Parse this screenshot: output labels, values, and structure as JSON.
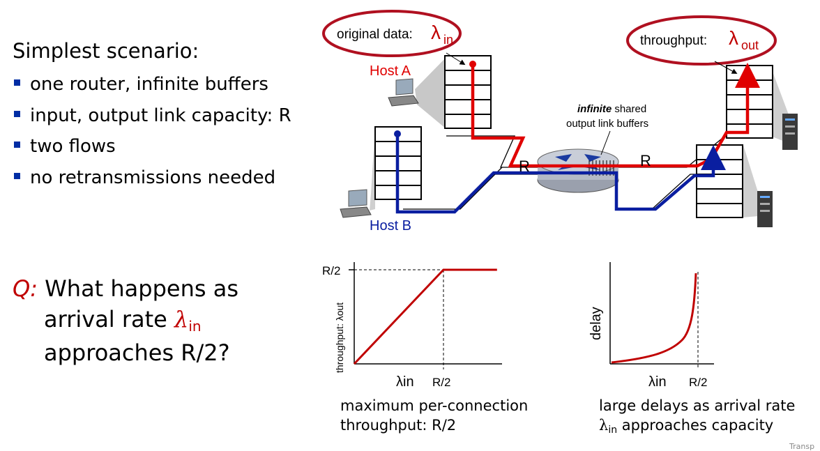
{
  "left": {
    "heading": "Simplest scenario:",
    "bullets": [
      "one router, infinite buffers",
      "input, output link capacity: R",
      "two flows",
      "no retransmissions needed"
    ],
    "question": {
      "q_label": "Q:",
      "line1": "What happens as",
      "line2_prefix": "arrival rate",
      "lambda": "λ",
      "lambda_sub": "in",
      "line3": "approaches R/2?"
    }
  },
  "diagram": {
    "original_data_label": "original data:",
    "throughput_label": "throughput:",
    "lambda": "λ",
    "sub_in": "in",
    "sub_out": "out",
    "host_a": "Host A",
    "host_b": "Host B",
    "buffers_bold": "infinite",
    "buffers_rest1": "shared",
    "buffers_rest2": "output link buffers",
    "link_left": "R",
    "link_right": "R",
    "colors": {
      "red": "#e00000",
      "blue": "#0a1ea0",
      "oval": "#b01020"
    }
  },
  "chart_data": [
    {
      "type": "line",
      "ylabel": "throughput: λout",
      "xlabel": "λin",
      "x_ticks": [
        "R/2"
      ],
      "y_ticks": [
        "R/2"
      ],
      "series": [
        {
          "x": [
            0,
            0.5,
            0.8
          ],
          "y": [
            0,
            0.5,
            0.5
          ]
        }
      ],
      "caption_line1": "maximum per-connection",
      "caption_line2": "throughput: R/2",
      "color": "#c00000"
    },
    {
      "type": "line",
      "ylabel": "delay",
      "xlabel": "λin",
      "x_ticks": [
        "R/2"
      ],
      "caption_line1": "large delays as arrival rate",
      "caption_line2_suffix": "approaches capacity",
      "color": "#c00000"
    }
  ],
  "footer": {
    "fragment": "Transp"
  }
}
